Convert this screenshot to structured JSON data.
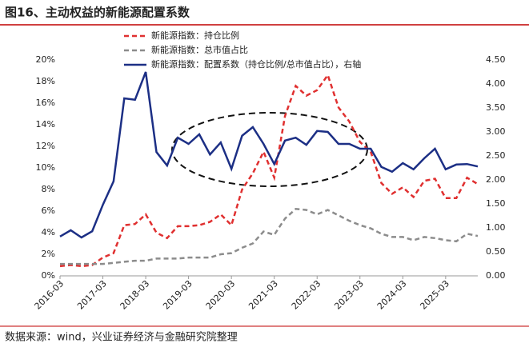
{
  "chart_data": {
    "type": "line",
    "title": "图16、主动权益的新能源配置系数",
    "source": "数据来源：wind，兴业证券经济与金融研究院整理",
    "categories": [
      "2016-03",
      null,
      null,
      null,
      "2017-03",
      null,
      null,
      null,
      "2018-03",
      null,
      null,
      null,
      "2019-03",
      null,
      null,
      null,
      "2020-03",
      null,
      null,
      null,
      "2021-03",
      null,
      null,
      null,
      "2022-03",
      null,
      null,
      null,
      "2023-03",
      null,
      null,
      null,
      "2024-03",
      null,
      null,
      null,
      "2025-03",
      null,
      null,
      null
    ],
    "series": [
      {
        "name": "新能源指数：持仓比例",
        "color": "#e03030",
        "linestyle": "dashed",
        "values": [
          0.9,
          1.0,
          0.9,
          1.0,
          1.7,
          2.1,
          4.7,
          4.8,
          5.7,
          4.0,
          3.5,
          4.6,
          4.6,
          4.7,
          5.0,
          5.7,
          4.7,
          8.0,
          9.5,
          11.5,
          9.1,
          14.8,
          17.6,
          16.7,
          17.2,
          18.6,
          15.6,
          14.3,
          12.4,
          11.5,
          8.6,
          7.6,
          8.2,
          7.3,
          8.8,
          9.0,
          7.2,
          7.2,
          9.1,
          8.5
        ]
      },
      {
        "name": "新能源指数：总市值占比",
        "color": "#8c8c8c",
        "linestyle": "dashed",
        "values": [
          1.1,
          1.1,
          1.1,
          1.1,
          1.1,
          1.2,
          1.3,
          1.4,
          1.4,
          1.6,
          1.6,
          1.6,
          1.7,
          1.7,
          1.7,
          2.0,
          2.1,
          2.6,
          3.0,
          4.1,
          3.8,
          5.3,
          6.2,
          6.1,
          5.7,
          6.1,
          5.6,
          5.1,
          4.7,
          4.4,
          3.9,
          3.6,
          3.6,
          3.3,
          3.6,
          3.5,
          3.3,
          3.2,
          3.9,
          3.7
        ]
      },
      {
        "name": "新能源指数：配置系数（持仓比例/总市值占比），右轴",
        "color": "#1c2f85",
        "linestyle": "solid",
        "axis": "y2",
        "values": [
          0.82,
          0.95,
          0.8,
          0.93,
          1.48,
          1.97,
          3.7,
          3.67,
          4.25,
          2.58,
          2.3,
          2.88,
          2.75,
          2.95,
          2.53,
          2.78,
          2.23,
          2.92,
          3.1,
          2.75,
          2.33,
          2.82,
          2.88,
          2.73,
          3.02,
          3.0,
          2.75,
          2.75,
          2.65,
          2.65,
          2.27,
          2.17,
          2.35,
          2.22,
          2.45,
          2.65,
          2.22,
          2.32,
          2.33,
          2.28
        ]
      }
    ],
    "ylim": [
      0,
      20
    ],
    "yticks": [
      {
        "value": 0,
        "label": "0%"
      },
      {
        "value": 2,
        "label": "2%"
      },
      {
        "value": 4,
        "label": "4%"
      },
      {
        "value": 6,
        "label": "6%"
      },
      {
        "value": 8,
        "label": "8%"
      },
      {
        "value": 10,
        "label": "10%"
      },
      {
        "value": 12,
        "label": "12%"
      },
      {
        "value": 14,
        "label": "14%"
      },
      {
        "value": 16,
        "label": "16%"
      },
      {
        "value": 18,
        "label": "18%"
      },
      {
        "value": 20,
        "label": "20%"
      }
    ],
    "y2lim": [
      0,
      4.5
    ],
    "y2ticks": [
      {
        "value": 0,
        "label": "0.00"
      },
      {
        "value": 0.5,
        "label": "0.50"
      },
      {
        "value": 1,
        "label": "1.00"
      },
      {
        "value": 1.5,
        "label": "1.50"
      },
      {
        "value": 2,
        "label": "2.00"
      },
      {
        "value": 2.5,
        "label": "2.50"
      },
      {
        "value": 3,
        "label": "3.00"
      },
      {
        "value": 3.5,
        "label": "3.50"
      },
      {
        "value": 4,
        "label": "4.00"
      },
      {
        "value": 4.5,
        "label": "4.50"
      }
    ],
    "grid": false,
    "legend": "upper center"
  }
}
